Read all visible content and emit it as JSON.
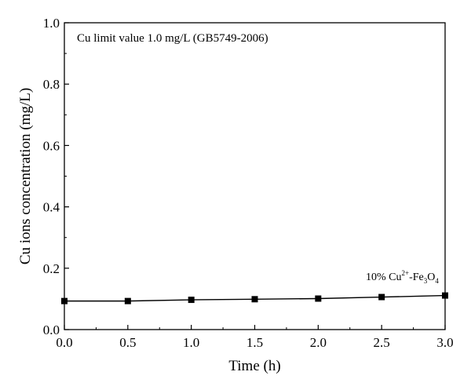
{
  "chart_data": {
    "type": "line",
    "title": "",
    "xlabel": "Time (h)",
    "ylabel": "Cu ions concentration (mg/L)",
    "xlim": [
      0.0,
      3.0
    ],
    "ylim": [
      0.0,
      1.0
    ],
    "xticks": [
      0.0,
      0.5,
      1.0,
      1.5,
      2.0,
      2.5,
      3.0
    ],
    "xtick_labels": [
      "0.0",
      "0.5",
      "1.0",
      "1.5",
      "2.0",
      "2.5",
      "3.0"
    ],
    "yticks": [
      0.0,
      0.2,
      0.4,
      0.6,
      0.8,
      1.0
    ],
    "ytick_labels": [
      "0.0",
      "0.2",
      "0.4",
      "0.6",
      "0.8",
      "1.0"
    ],
    "grid": false,
    "annotation": "Cu limit value 1.0 mg/L (GB5749-2006)",
    "series": [
      {
        "name": "10% Cu²⁺-Fe₃O₄",
        "name_parts": {
          "prefix": "10% Cu",
          "superscript": "2+",
          "middle": "-Fe",
          "subscript1": "3",
          "mid2": "O",
          "subscript2": "4"
        },
        "marker": "square",
        "color": "#000000",
        "x": [
          0.0,
          0.5,
          1.0,
          1.5,
          2.0,
          2.5,
          3.0
        ],
        "y": [
          0.093,
          0.093,
          0.097,
          0.099,
          0.101,
          0.106,
          0.111
        ]
      }
    ]
  }
}
